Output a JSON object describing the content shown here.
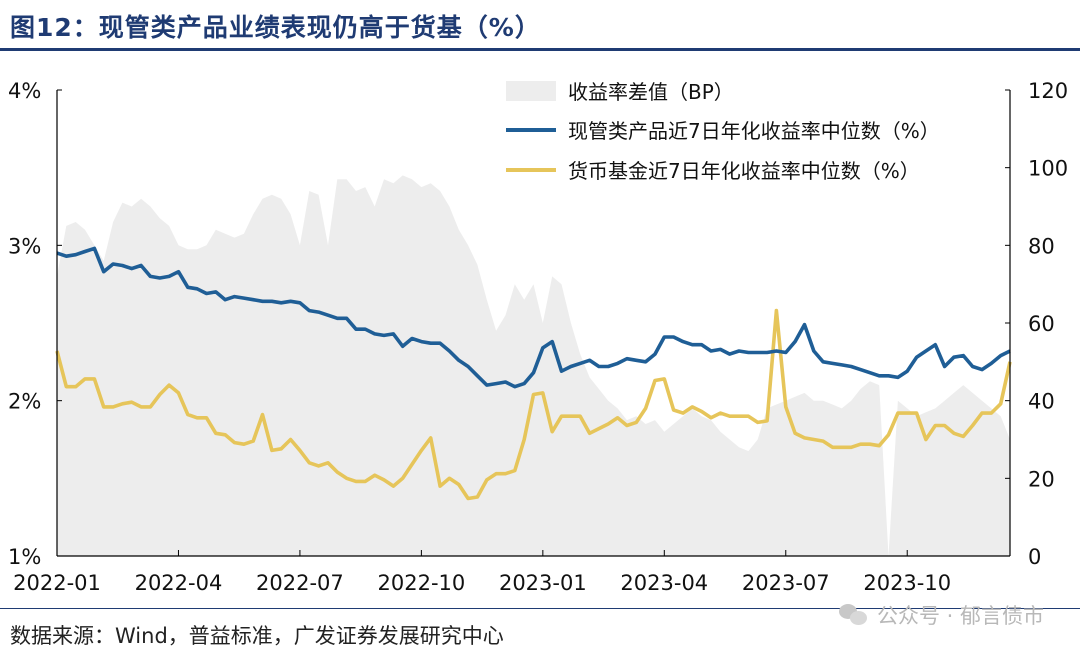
{
  "title": "图12：现管类产品业绩表现仍高于货基（%）",
  "source": "数据来源：Wind，普益标准，广发证券发展研究中心",
  "watermark": "公众号 · 郁言债市",
  "colors": {
    "spread": "#ededed",
    "wealth": "#1f5e96",
    "mmf": "#e6c55a",
    "title": "#1f3b73"
  },
  "chart_data": {
    "type": "line",
    "x_ticks": [
      "2022-01",
      "2022-04",
      "2022-07",
      "2022-10",
      "2023-01",
      "2023-04",
      "2023-07",
      "2023-10"
    ],
    "x_range_weeks": [
      0,
      102
    ],
    "y_left": {
      "ticks": [
        "1%",
        "2%",
        "3%",
        "4%"
      ],
      "range": [
        1,
        4
      ]
    },
    "y_right": {
      "ticks": [
        "0",
        "20",
        "40",
        "60",
        "80",
        "100",
        "120"
      ],
      "range": [
        0,
        120
      ]
    },
    "legend": {
      "position": "top-right",
      "items": [
        "收益率差值（BP）",
        "现管类产品近7日年化收益率中位数（%）",
        "货币基金近7日年化收益率中位数（%）"
      ]
    },
    "series": [
      {
        "name": "收益率差值（BP）",
        "axis": "right",
        "kind": "area",
        "values": [
          72,
          85,
          86,
          84,
          80,
          76,
          86,
          91,
          90,
          92,
          90,
          87,
          85,
          80,
          79,
          79,
          80,
          84,
          83,
          82,
          83,
          88,
          92,
          93,
          92,
          88,
          80,
          94,
          93,
          80,
          97,
          97,
          94,
          95,
          90,
          97,
          96,
          98,
          97,
          95,
          96,
          94,
          90,
          84,
          80,
          75,
          66,
          58,
          62,
          70,
          66,
          70,
          60,
          72,
          70,
          60,
          52,
          46,
          43,
          40,
          38,
          35,
          36,
          34,
          35,
          32,
          34,
          36,
          38,
          36,
          35,
          32,
          30,
          28,
          27,
          30,
          38,
          39,
          40,
          41,
          42,
          40,
          40,
          39,
          38,
          40,
          43,
          45,
          44,
          0,
          40,
          38,
          36,
          37,
          38,
          40,
          42,
          44,
          42,
          40,
          38,
          36,
          30
        ]
      },
      {
        "name": "现管类产品近7日年化收益率中位数（%）",
        "axis": "left",
        "kind": "line",
        "values": [
          2.95,
          2.93,
          2.94,
          2.96,
          2.98,
          2.83,
          2.88,
          2.87,
          2.85,
          2.87,
          2.8,
          2.79,
          2.8,
          2.83,
          2.73,
          2.72,
          2.69,
          2.7,
          2.65,
          2.67,
          2.66,
          2.65,
          2.64,
          2.64,
          2.63,
          2.64,
          2.63,
          2.58,
          2.57,
          2.55,
          2.53,
          2.53,
          2.46,
          2.46,
          2.43,
          2.42,
          2.43,
          2.35,
          2.4,
          2.38,
          2.37,
          2.37,
          2.32,
          2.26,
          2.22,
          2.16,
          2.1,
          2.11,
          2.12,
          2.09,
          2.11,
          2.18,
          2.34,
          2.38,
          2.19,
          2.22,
          2.24,
          2.26,
          2.22,
          2.22,
          2.24,
          2.27,
          2.26,
          2.25,
          2.3,
          2.41,
          2.41,
          2.38,
          2.36,
          2.36,
          2.32,
          2.33,
          2.3,
          2.32,
          2.31,
          2.31,
          2.31,
          2.32,
          2.31,
          2.38,
          2.49,
          2.32,
          2.25,
          2.24,
          2.23,
          2.22,
          2.2,
          2.18,
          2.16,
          2.16,
          2.15,
          2.19,
          2.28,
          2.32,
          2.36,
          2.22,
          2.28,
          2.29,
          2.22,
          2.2,
          2.24,
          2.29,
          2.32
        ]
      },
      {
        "name": "货币基金近7日年化收益率中位数（%）",
        "axis": "left",
        "kind": "line",
        "values": [
          2.32,
          2.09,
          2.09,
          2.14,
          2.14,
          1.96,
          1.96,
          1.98,
          1.99,
          1.96,
          1.96,
          2.04,
          2.1,
          2.05,
          1.91,
          1.89,
          1.89,
          1.79,
          1.78,
          1.73,
          1.72,
          1.74,
          1.91,
          1.68,
          1.69,
          1.75,
          1.68,
          1.6,
          1.58,
          1.6,
          1.54,
          1.5,
          1.48,
          1.48,
          1.52,
          1.49,
          1.45,
          1.5,
          1.59,
          1.68,
          1.76,
          1.45,
          1.5,
          1.46,
          1.37,
          1.38,
          1.49,
          1.53,
          1.53,
          1.55,
          1.75,
          2.04,
          2.05,
          1.8,
          1.9,
          1.9,
          1.9,
          1.79,
          1.82,
          1.85,
          1.89,
          1.84,
          1.86,
          1.95,
          2.13,
          2.14,
          1.94,
          1.92,
          1.96,
          1.93,
          1.89,
          1.92,
          1.9,
          1.9,
          1.9,
          1.86,
          1.87,
          2.58,
          1.96,
          1.79,
          1.76,
          1.75,
          1.74,
          1.7,
          1.7,
          1.7,
          1.72,
          1.72,
          1.71,
          1.78,
          1.92,
          1.92,
          1.92,
          1.75,
          1.84,
          1.84,
          1.79,
          1.77,
          1.84,
          1.92,
          1.92,
          1.98,
          2.25
        ]
      }
    ]
  }
}
